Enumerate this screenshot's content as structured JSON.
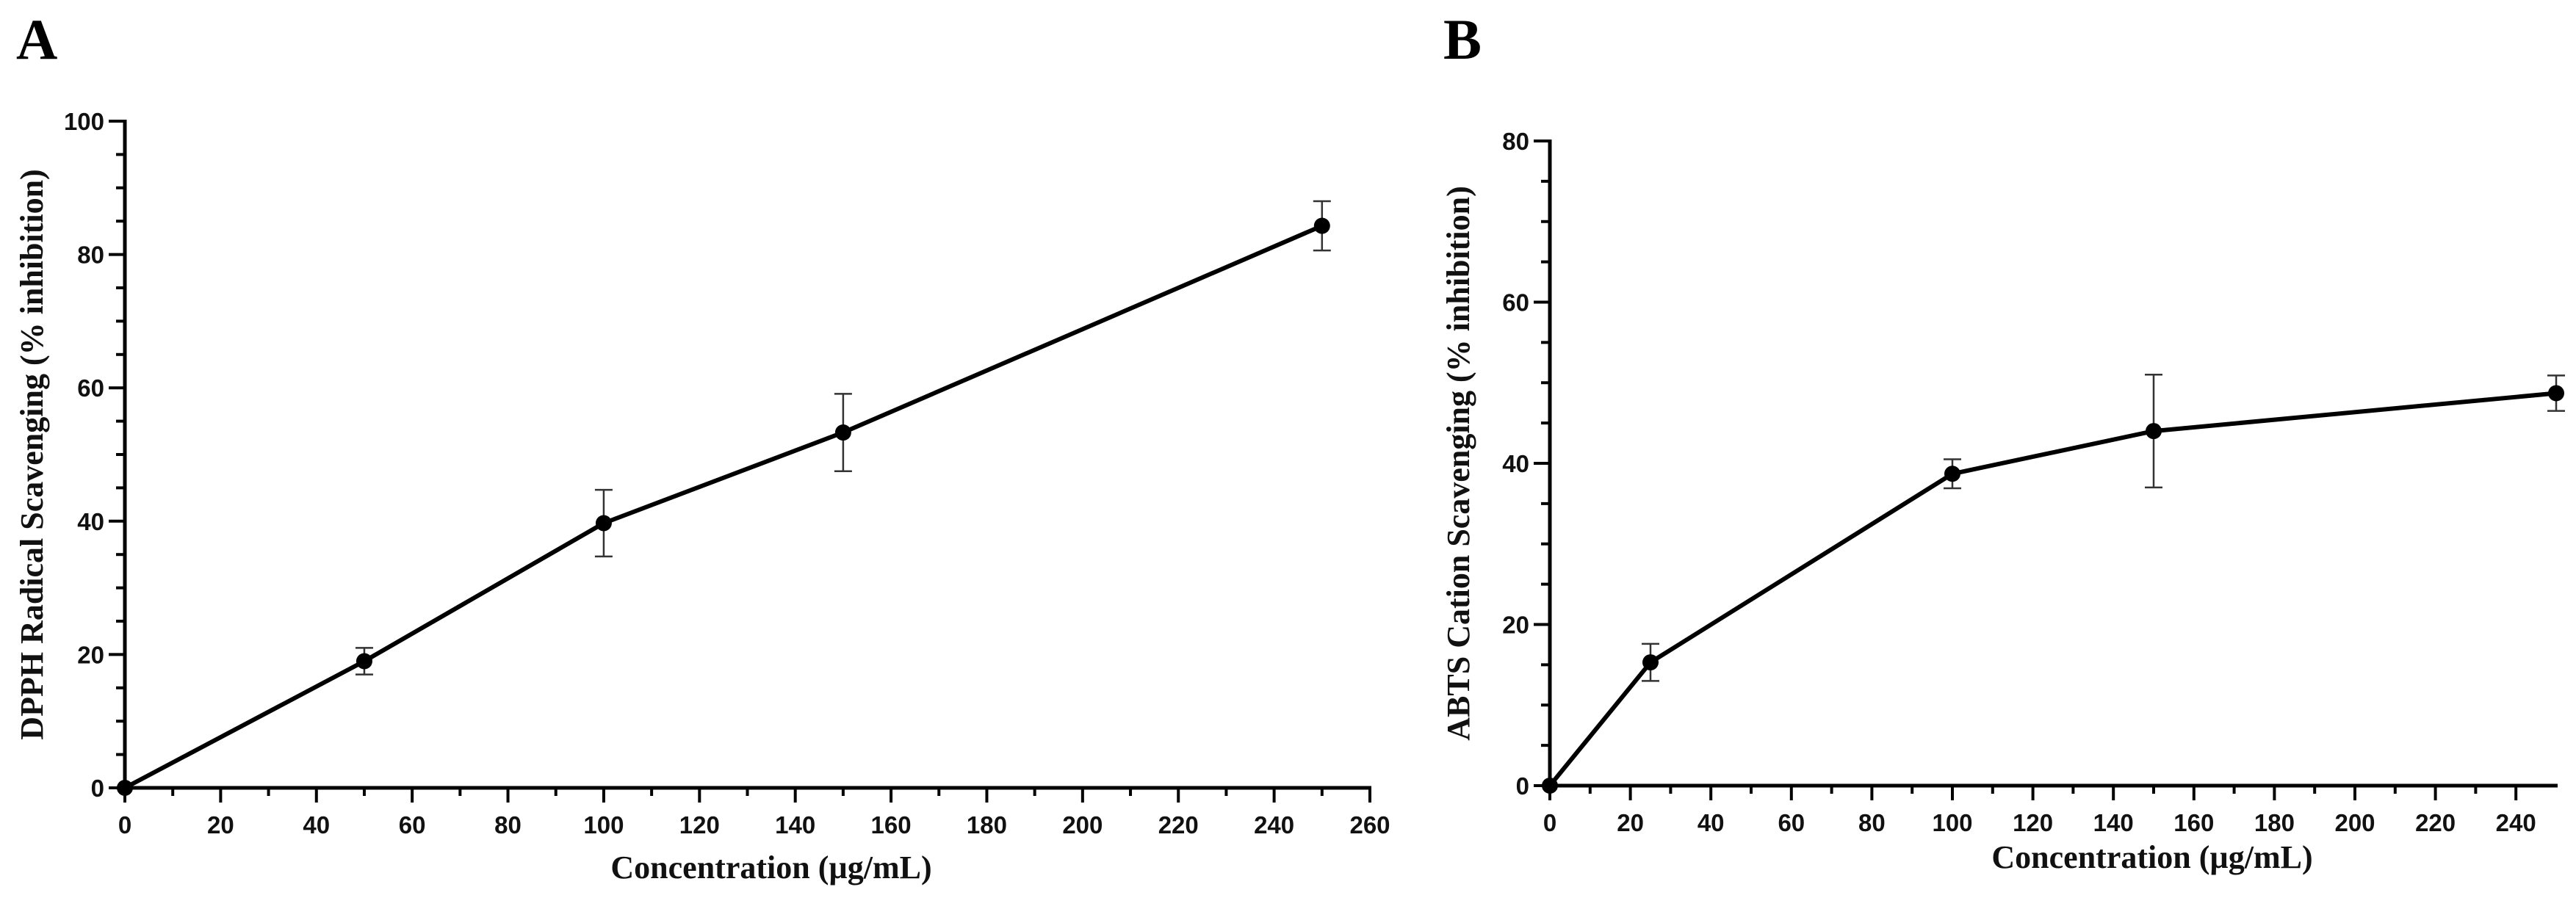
{
  "panel_labels": [
    "A",
    "B"
  ],
  "chart_data": [
    {
      "type": "line",
      "panel": "A",
      "title": "",
      "xlabel": "Concentration (µg/mL)",
      "ylabel": "DPPH Radical Scavenging (% inhibition)",
      "xlim": [
        0,
        260
      ],
      "ylim": [
        0,
        100
      ],
      "x_major_ticks": [
        0,
        20,
        40,
        60,
        80,
        100,
        120,
        140,
        160,
        180,
        200,
        220,
        240,
        260
      ],
      "y_major_ticks": [
        0,
        20,
        40,
        60,
        80,
        100
      ],
      "y_minor_step": 5,
      "x_tick_labels": [
        "0",
        "20",
        "40",
        "60",
        "80",
        "100",
        "120",
        "140",
        "160",
        "180",
        "200",
        "220",
        "240",
        "260"
      ],
      "y_tick_labels": [
        "0",
        "20",
        "40",
        "60",
        "80",
        "100"
      ],
      "series": [
        {
          "name": "DPPH",
          "x": [
            0,
            50,
            100,
            150,
            250
          ],
          "y": [
            0,
            19,
            39.7,
            53.3,
            84.3
          ],
          "error": [
            0,
            2,
            5,
            5.8,
            3.7
          ]
        }
      ]
    },
    {
      "type": "line",
      "panel": "B",
      "title": "",
      "xlabel": "Concentration (µg/mL)",
      "ylabel": "ABTS Cation Scavenging (% inhibition)",
      "xlim": [
        0,
        250
      ],
      "ylim": [
        0,
        80
      ],
      "x_major_ticks": [
        0,
        20,
        40,
        60,
        80,
        100,
        120,
        140,
        160,
        180,
        200,
        220,
        240
      ],
      "y_major_ticks": [
        0,
        20,
        40,
        60,
        80
      ],
      "y_minor_step": 5,
      "x_tick_labels": [
        "0",
        "20",
        "40",
        "60",
        "80",
        "100",
        "120",
        "140",
        "160",
        "180",
        "200",
        "220",
        "240"
      ],
      "y_tick_labels": [
        "0",
        "20",
        "40",
        "60",
        "80"
      ],
      "series": [
        {
          "name": "ABTS",
          "x": [
            0,
            25,
            100,
            150,
            250
          ],
          "y": [
            0,
            15.3,
            38.7,
            44,
            48.7
          ],
          "error": [
            0,
            2.3,
            1.8,
            7,
            2.2
          ]
        }
      ]
    }
  ]
}
